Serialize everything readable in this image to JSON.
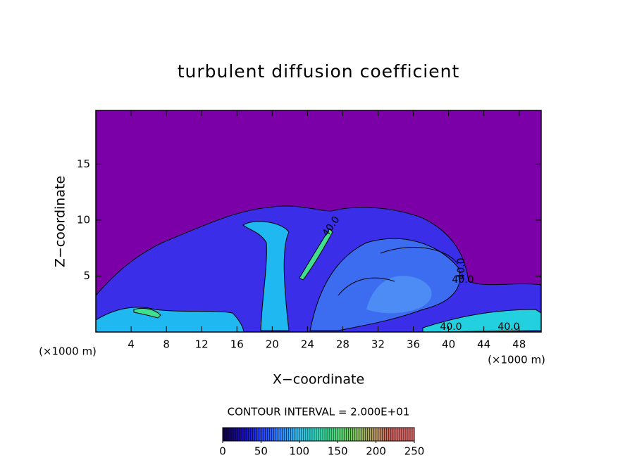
{
  "chart_data": {
    "type": "contour",
    "title": "turbulent diffusion coefficient",
    "xlabel": "X−coordinate",
    "ylabel": "Z−coordinate",
    "x_unit": "(×1000 m)",
    "y_unit": "(×1000 m)",
    "xlim": [
      0,
      50.5
    ],
    "ylim": [
      0,
      19.8
    ],
    "xticks": [
      4,
      8,
      12,
      16,
      20,
      24,
      28,
      32,
      36,
      40,
      44,
      48
    ],
    "yticks": [
      5,
      10,
      15
    ],
    "contour_interval": "CONTOUR INTERVAL = 2.000E+01",
    "contour_labels": [
      "40.0",
      "40.0",
      "40.0",
      "40.0",
      "40.0"
    ],
    "clim": [
      0,
      250
    ],
    "cticks": [
      0,
      50,
      100,
      150,
      200,
      250
    ],
    "colormap": [
      "#10004a",
      "#1a10c0",
      "#2850ff",
      "#30a0ff",
      "#30d8e0",
      "#40e090",
      "#70d060",
      "#b0a060",
      "#d06060",
      "#e07070"
    ],
    "background_color": "#7c00a8"
  }
}
